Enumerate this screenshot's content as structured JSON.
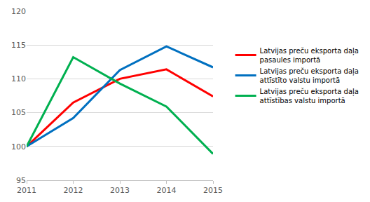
{
  "chart_data": {
    "type": "line",
    "x": [
      2011,
      2012,
      2013,
      2014,
      2015
    ],
    "series": [
      {
        "name": "Latvijas preču eksporta daļa pasaules importā",
        "color": "#ff0000",
        "values": [
          100,
          106.5,
          110,
          111.4,
          107.4
        ]
      },
      {
        "name": "Latvijas preču eksporta daļa attīstīto valstu importā",
        "color": "#0070c0",
        "values": [
          100,
          104.2,
          111.3,
          114.8,
          111.7
        ]
      },
      {
        "name": "Latvijas preču eksporta daļa attīstības valstu importā",
        "color": "#00b050",
        "values": [
          100,
          113.2,
          109.3,
          105.9,
          98.9
        ]
      }
    ],
    "xlim": [
      2011,
      2015
    ],
    "xticks": [
      2011,
      2012,
      2013,
      2014,
      2015
    ],
    "ylim": [
      95,
      120
    ],
    "yticks": [
      95,
      100,
      105,
      110,
      115,
      120
    ],
    "grid": true,
    "legend": "right"
  }
}
